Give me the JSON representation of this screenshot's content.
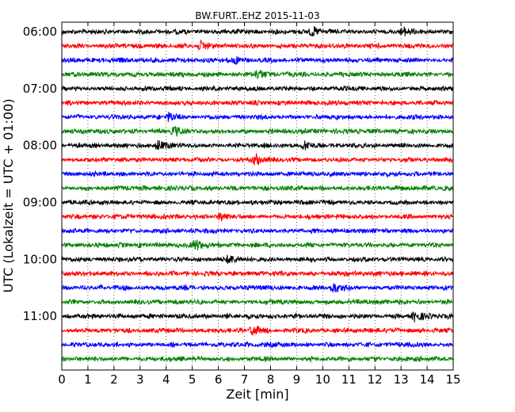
{
  "chart_data": {
    "type": "line",
    "title": "BW.FURT..EHZ 2015-11-03",
    "xlabel": "Zeit  [min]",
    "ylabel": "UTC (Lokalzeit = UTC + 01:00)",
    "xlim": [
      0,
      15
    ],
    "x_ticks": [
      "0",
      "1",
      "2",
      "3",
      "4",
      "5",
      "6",
      "7",
      "8",
      "9",
      "10",
      "11",
      "12",
      "13",
      "14",
      "15"
    ],
    "y_ticks": [
      "06:00",
      "07:00",
      "08:00",
      "09:00",
      "10:00",
      "11:00"
    ],
    "trace_interval_min": 15,
    "trace_count": 24,
    "trace_colors": [
      "#000000",
      "#ff0000",
      "#0000ff",
      "#008000"
    ],
    "grid": true,
    "notable_events": [
      {
        "trace": 0,
        "minute": 9.6
      },
      {
        "trace": 0,
        "minute": 13.1
      },
      {
        "trace": 1,
        "minute": 5.3
      },
      {
        "trace": 2,
        "minute": 6.6
      },
      {
        "trace": 3,
        "minute": 7.5
      },
      {
        "trace": 6,
        "minute": 4.1
      },
      {
        "trace": 7,
        "minute": 4.3
      },
      {
        "trace": 8,
        "minute": 3.7
      },
      {
        "trace": 8,
        "minute": 9.3
      },
      {
        "trace": 9,
        "minute": 7.4
      },
      {
        "trace": 13,
        "minute": 6.1
      },
      {
        "trace": 15,
        "minute": 5.1
      },
      {
        "trace": 16,
        "minute": 6.4
      },
      {
        "trace": 18,
        "minute": 10.4
      },
      {
        "trace": 20,
        "minute": 13.5
      },
      {
        "trace": 21,
        "minute": 7.3
      }
    ]
  }
}
